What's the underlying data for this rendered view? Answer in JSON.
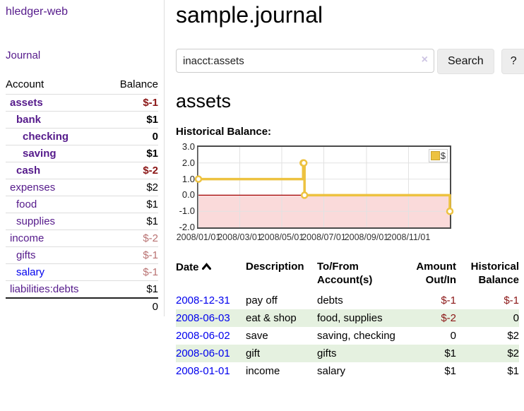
{
  "colors": {
    "purple_link": "#551a8b",
    "blue_link": "#0000ee",
    "negative": "#8b1616",
    "negative_dim": "#b97272",
    "row_stripe_green": "#e5f1e0"
  },
  "sidebar": {
    "brand": "hledger-web",
    "journal_link": "Journal",
    "accounts_table": {
      "headers": [
        "Account",
        "Balance"
      ],
      "rows": [
        {
          "name": "assets",
          "depth": 0,
          "row_class": "boldrow",
          "balance": "$-1",
          "balance_class": "neg"
        },
        {
          "name": "bank",
          "depth": 1,
          "row_class": "boldrow",
          "balance": "$1",
          "balance_class": ""
        },
        {
          "name": "checking",
          "depth": 2,
          "row_class": "boldrow",
          "balance": "0",
          "balance_class": ""
        },
        {
          "name": "saving",
          "depth": 2,
          "row_class": "boldrow",
          "balance": "$1",
          "balance_class": ""
        },
        {
          "name": "cash",
          "depth": 1,
          "row_class": "boldrow",
          "balance": "$-2",
          "balance_class": "neg"
        },
        {
          "name": "expenses",
          "depth": 0,
          "row_class": "",
          "balance": "$2",
          "balance_class": ""
        },
        {
          "name": "food",
          "depth": 1,
          "row_class": "",
          "balance": "$1",
          "balance_class": ""
        },
        {
          "name": "supplies",
          "depth": 1,
          "row_class": "",
          "balance": "$1",
          "balance_class": ""
        },
        {
          "name": "income",
          "depth": 0,
          "row_class": "",
          "balance": "$-2",
          "balance_class": "negdim"
        },
        {
          "name": "gifts",
          "depth": 1,
          "row_class": "",
          "balance": "$-1",
          "balance_class": "negdim"
        },
        {
          "name": "salary",
          "depth": 1,
          "row_class": "bluelink",
          "balance": "$-1",
          "balance_class": "negdim"
        },
        {
          "name": "liabilities:debts",
          "depth": 0,
          "row_class": "",
          "balance": "$1",
          "balance_class": ""
        }
      ],
      "total": "0"
    }
  },
  "main": {
    "title": "sample.journal",
    "search": {
      "value": "inacct:assets",
      "clear_icon": "×",
      "search_label": "Search",
      "help_label": "?"
    },
    "heading": "assets"
  },
  "chart_data": {
    "type": "line",
    "title": "Historical Balance:",
    "step": true,
    "series": [
      {
        "name": "$",
        "points": [
          [
            "2008-01-01",
            1
          ],
          [
            "2008-06-01",
            2
          ],
          [
            "2008-06-02",
            2
          ],
          [
            "2008-06-03",
            0
          ],
          [
            "2008-12-31",
            -1
          ]
        ]
      }
    ],
    "x_range": [
      "2008-01-01",
      "2008-12-31"
    ],
    "ylim": [
      -2,
      3
    ],
    "y_ticks": [
      3,
      2,
      1,
      0,
      -1,
      -2
    ],
    "y_tick_labels": [
      "3.0",
      "2.0",
      "1.0",
      "0.0",
      "-1.0",
      "-2.0"
    ],
    "x_ticks": [
      "2008-01-01",
      "2008-03-01",
      "2008-05-01",
      "2008-07-01",
      "2008-09-01",
      "2008-11-01"
    ],
    "x_tick_labels": [
      "2008/01/01",
      "2008/03/01",
      "2008/05/01",
      "2008/07/01",
      "2008/09/01",
      "2008/11/01"
    ],
    "grid": true,
    "legend": {
      "label": "$",
      "position": "top-right",
      "swatch_color": "#edc240",
      "swatch_border": "#c9a22c"
    },
    "colors": {
      "line": "#edc240",
      "marker_fill": "#ffffff",
      "negative_region": "#fadada",
      "zero_line": "#a30000",
      "grid": "#e2e2e2",
      "border": "#4a4a4a"
    }
  },
  "transactions": {
    "columns": [
      "Date",
      "Description",
      "To/From\nAccount(s)",
      "Amount\nOut/In",
      "Historical\nBalance"
    ],
    "rows": [
      {
        "date": "2008-12-31",
        "description": "pay off",
        "accounts": "debts",
        "amount": "$-1",
        "amount_class": "neg",
        "balance": "$-1",
        "balance_class": "neg"
      },
      {
        "date": "2008-06-03",
        "description": "eat & shop",
        "accounts": "food, supplies",
        "amount": "$-2",
        "amount_class": "neg",
        "balance": "0",
        "balance_class": ""
      },
      {
        "date": "2008-06-02",
        "description": "save",
        "accounts": "saving, checking",
        "amount": "0",
        "amount_class": "",
        "balance": "$2",
        "balance_class": ""
      },
      {
        "date": "2008-06-01",
        "description": "gift",
        "accounts": "gifts",
        "amount": "$1",
        "amount_class": "",
        "balance": "$2",
        "balance_class": ""
      },
      {
        "date": "2008-01-01",
        "description": "income",
        "accounts": "salary",
        "amount": "$1",
        "amount_class": "",
        "balance": "$1",
        "balance_class": ""
      }
    ]
  }
}
